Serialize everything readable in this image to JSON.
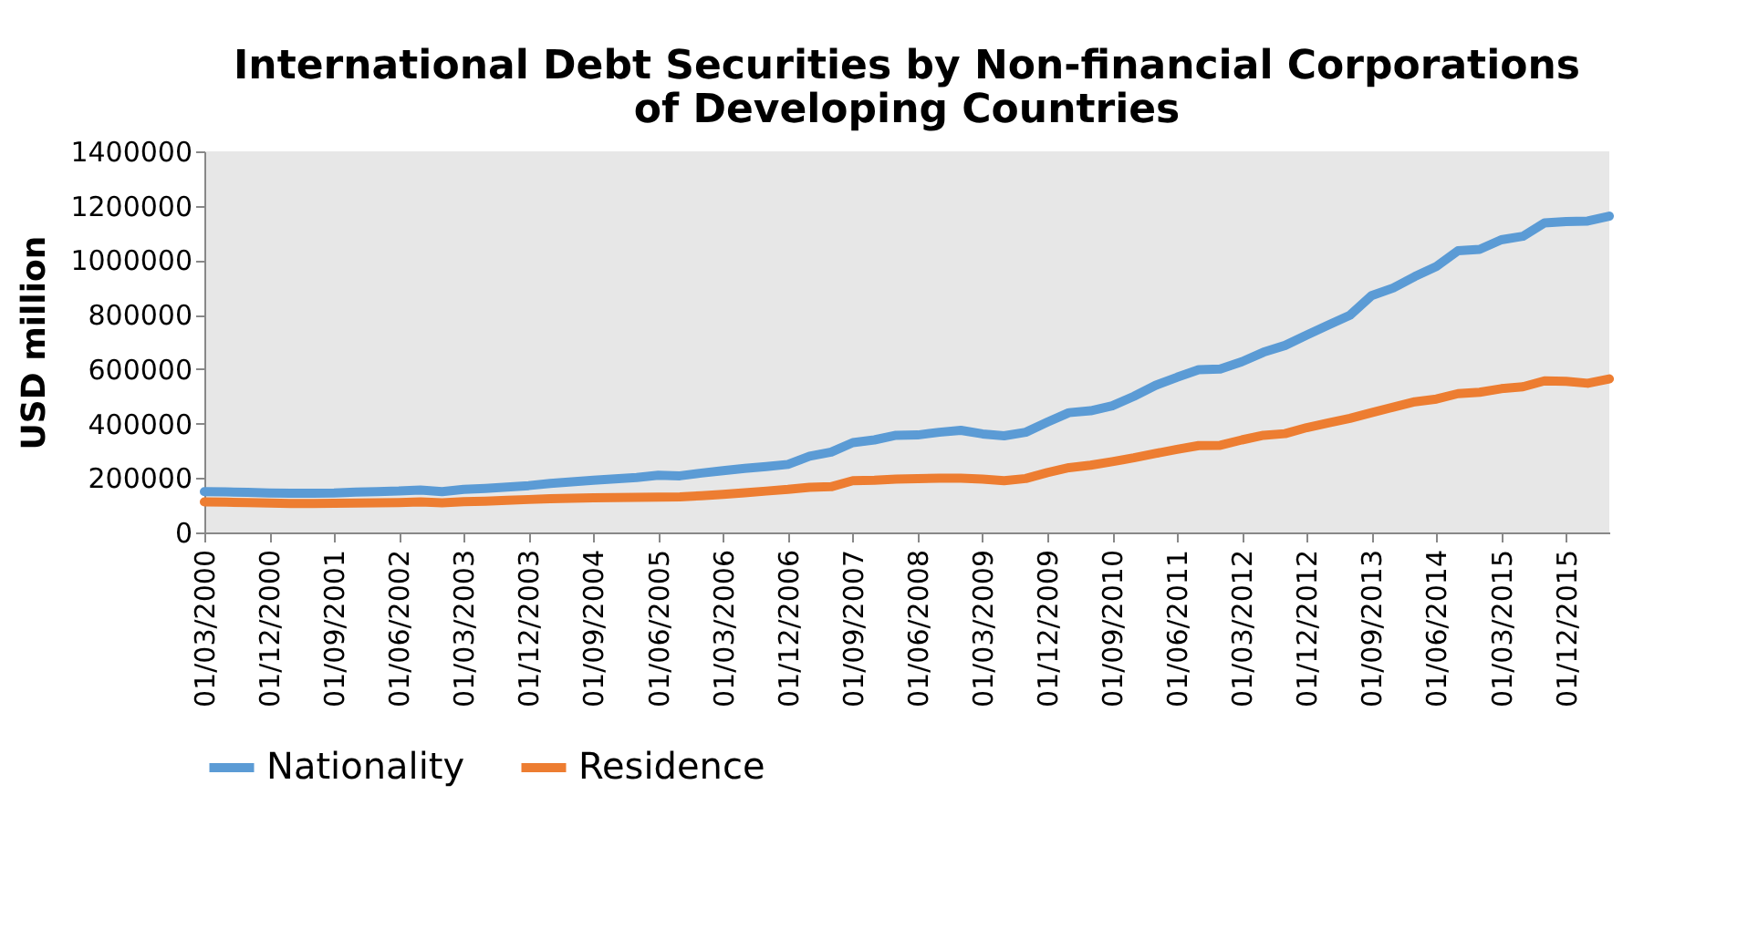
{
  "chart_data": {
    "type": "line",
    "title": [
      "International Debt Securities by Non-financial Corporations",
      "of Developing Countries"
    ],
    "ylabel": "USD million",
    "categories": [
      "01/03/2000",
      null,
      null,
      "01/12/2000",
      null,
      null,
      "01/09/2001",
      null,
      null,
      "01/06/2002",
      null,
      null,
      "01/03/2003",
      null,
      null,
      "01/12/2003",
      null,
      null,
      "01/09/2004",
      null,
      null,
      "01/06/2005",
      null,
      null,
      "01/03/2006",
      null,
      null,
      "01/12/2006",
      null,
      null,
      "01/09/2007",
      null,
      null,
      "01/06/2008",
      null,
      null,
      "01/03/2009",
      null,
      null,
      "01/12/2009",
      null,
      null,
      "01/09/2010",
      null,
      null,
      "01/06/2011",
      null,
      null,
      "01/03/2012",
      null,
      null,
      "01/12/2012",
      null,
      null,
      "01/09/2013",
      null,
      null,
      "01/06/2014",
      null,
      null,
      "01/03/2015",
      null,
      null,
      "01/12/2015",
      null,
      null
    ],
    "series": [
      {
        "name": "Nationality",
        "color": "#5b9bd5",
        "values": [
          150000,
          149000,
          147000,
          145000,
          144000,
          144000,
          145000,
          148000,
          150000,
          152000,
          156000,
          150000,
          158000,
          162000,
          167000,
          172000,
          180000,
          186000,
          192000,
          197000,
          202000,
          210000,
          208000,
          218000,
          227000,
          235000,
          242000,
          250000,
          280000,
          295000,
          330000,
          340000,
          357000,
          358000,
          368000,
          375000,
          362000,
          355000,
          368000,
          405000,
          440000,
          447000,
          465000,
          500000,
          540000,
          570000,
          598000,
          600000,
          627000,
          662000,
          687000,
          725000,
          762000,
          798000,
          870000,
          898000,
          940000,
          977000,
          1035000,
          1040000,
          1075000,
          1088000,
          1137000,
          1142000,
          1144000,
          1162000
        ]
      },
      {
        "name": "Residence",
        "color": "#ed7d31",
        "values": [
          112000,
          111000,
          110000,
          108000,
          106000,
          106000,
          107000,
          108000,
          109000,
          110000,
          112000,
          109000,
          113000,
          115000,
          118000,
          121000,
          124000,
          126000,
          127000,
          128000,
          129000,
          130000,
          131000,
          135000,
          140000,
          146000,
          152000,
          158000,
          166000,
          168000,
          190000,
          192000,
          196000,
          198000,
          199000,
          199000,
          196000,
          190000,
          198000,
          220000,
          238000,
          247000,
          260000,
          274000,
          290000,
          305000,
          319000,
          320000,
          340000,
          357000,
          363000,
          385000,
          402000,
          419000,
          440000,
          460000,
          480000,
          490000,
          510000,
          515000,
          528000,
          535000,
          557000,
          555000,
          548000,
          564000
        ]
      }
    ],
    "ylim": [
      0,
      1400000
    ],
    "yticks": [
      0,
      200000,
      400000,
      600000,
      800000,
      1000000,
      1200000,
      1400000
    ],
    "grid": false,
    "legend": "bottom",
    "marker": "none",
    "line_style": "solid"
  }
}
